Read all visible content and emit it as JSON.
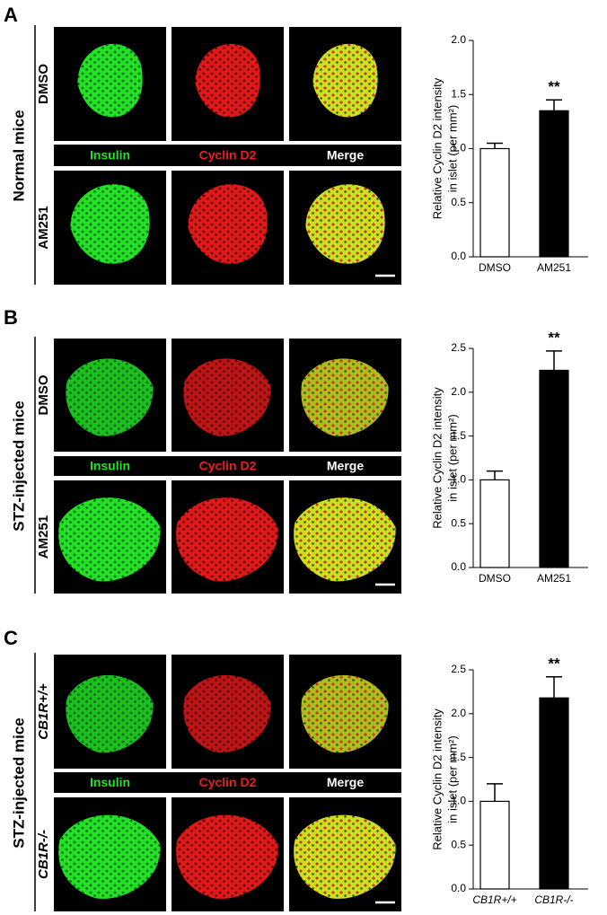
{
  "panels": [
    {
      "letter": "A",
      "group": "Normal mice",
      "rows": [
        "DMSO",
        "AM251"
      ],
      "channels": [
        "Insulin",
        "Cyclin D2",
        "Merge"
      ]
    },
    {
      "letter": "B",
      "group": "STZ-injected mice",
      "rows": [
        "DMSO",
        "AM251"
      ],
      "channels": [
        "Insulin",
        "Cyclin D2",
        "Merge"
      ]
    },
    {
      "letter": "C",
      "group": "STZ-injected mice",
      "rows": [
        "CB1R+/+",
        "CB1R-/-"
      ],
      "channels": [
        "Insulin",
        "Cyclin D2",
        "Merge"
      ]
    }
  ],
  "chart_data": [
    {
      "type": "bar",
      "y_label": [
        "Relative Cyclin D2 intensity",
        "in islet (per mm²)"
      ],
      "categories": [
        "DMSO",
        "AM251"
      ],
      "values": [
        1.0,
        1.35
      ],
      "errors": [
        0.05,
        0.1
      ],
      "colors": [
        "#ffffff",
        "#000000"
      ],
      "annotations": [
        null,
        "**"
      ],
      "ylim": [
        0,
        2.0
      ],
      "yticks": [
        {
          "value": 0,
          "label": "0.0"
        },
        {
          "value": 0.5,
          "label": "0.5"
        },
        {
          "value": 1,
          "label": "1.0"
        },
        {
          "value": 1.5,
          "label": "1.5"
        },
        {
          "value": 2,
          "label": "2.0"
        }
      ]
    },
    {
      "type": "bar",
      "y_label": [
        "Relative Cyclin D2 intensity",
        "in islet (per mm²)"
      ],
      "categories": [
        "DMSO",
        "AM251"
      ],
      "values": [
        1.0,
        2.25
      ],
      "errors": [
        0.1,
        0.22
      ],
      "colors": [
        "#ffffff",
        "#000000"
      ],
      "annotations": [
        null,
        "**"
      ],
      "ylim": [
        0,
        2.5
      ],
      "yticks": [
        {
          "value": 0,
          "label": "0.0"
        },
        {
          "value": 0.5,
          "label": "0.5"
        },
        {
          "value": 1,
          "label": "1.0"
        },
        {
          "value": 1.5,
          "label": "1.5"
        },
        {
          "value": 2,
          "label": "2.0"
        },
        {
          "value": 2.5,
          "label": "2.5"
        }
      ]
    },
    {
      "type": "bar",
      "y_label": [
        "Relative Cyclin D2 intensity",
        "in islet (per mm²)"
      ],
      "categories": [
        "CB1R+/+",
        "CB1R-/-"
      ],
      "values": [
        1.0,
        2.18
      ],
      "errors": [
        0.2,
        0.24
      ],
      "colors": [
        "#ffffff",
        "#000000"
      ],
      "annotations": [
        null,
        "**"
      ],
      "ylim": [
        0,
        2.5
      ],
      "yticks": [
        {
          "value": 0,
          "label": "0.0"
        },
        {
          "value": 0.5,
          "label": "0.5"
        },
        {
          "value": 1,
          "label": "1.0"
        },
        {
          "value": 1.5,
          "label": "1.5"
        },
        {
          "value": 2,
          "label": "2.0"
        },
        {
          "value": 2.5,
          "label": "2.5"
        }
      ]
    }
  ]
}
